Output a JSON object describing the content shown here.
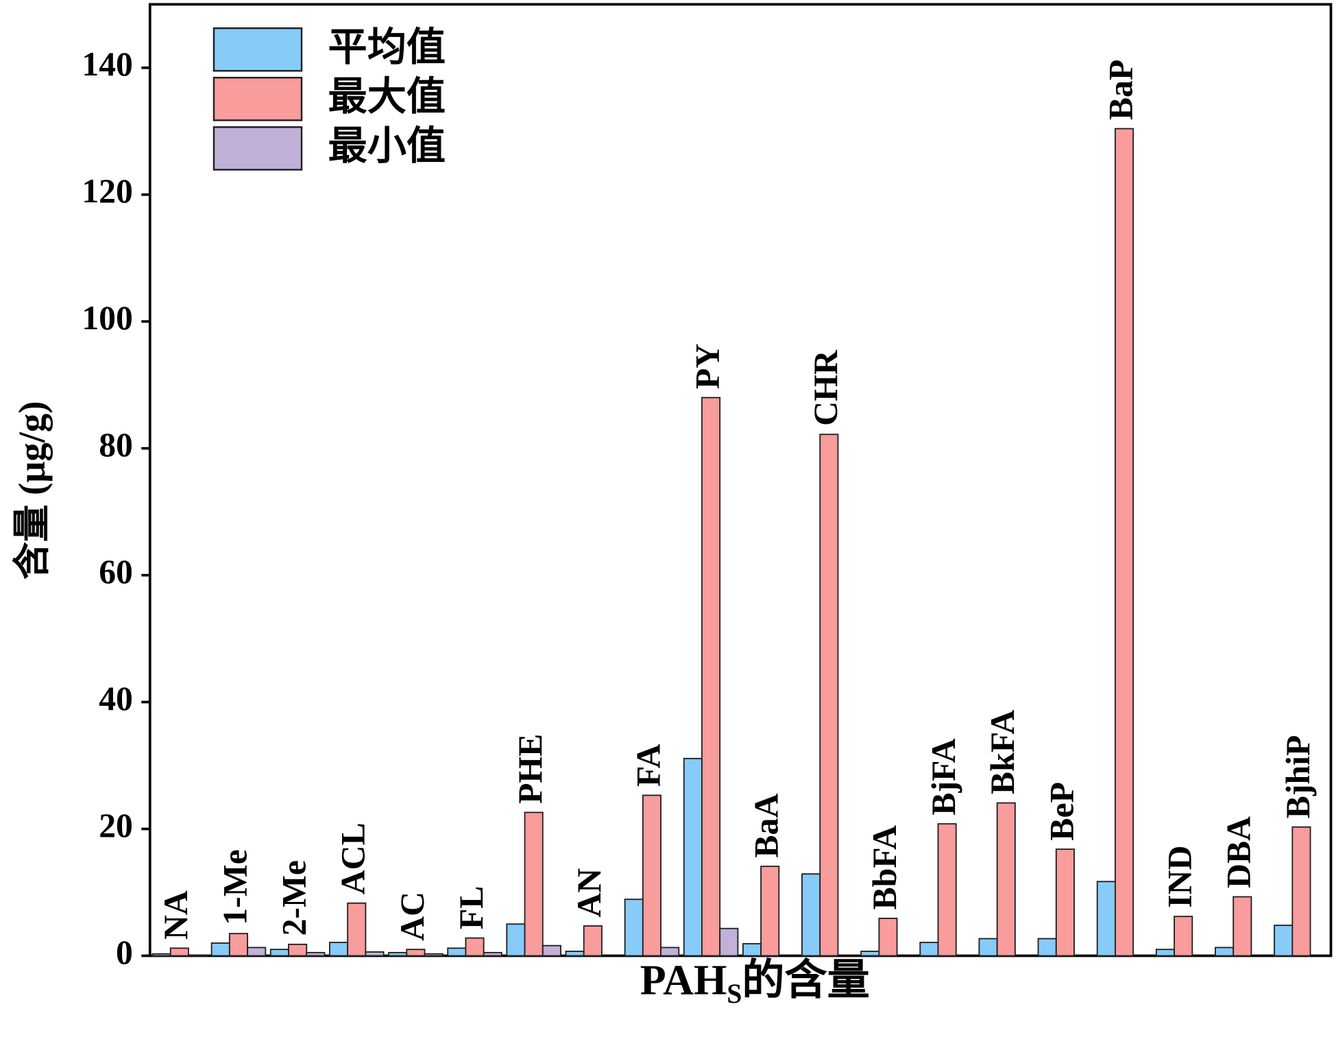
{
  "chart_data": {
    "type": "bar",
    "categories": [
      "NA",
      "1-Me",
      "2-Me",
      "ACL",
      "AC",
      "FL",
      "PHE",
      "AN",
      "FA",
      "PY",
      "BaA",
      "CHR",
      "BbFA",
      "BjFA",
      "BkFA",
      "BeP",
      "BaP",
      "IND",
      "DBA",
      "BjhiP"
    ],
    "series": [
      {
        "name": "平均值",
        "color": "#87cbf8",
        "values": [
          0.3,
          2.0,
          1.0,
          2.1,
          0.5,
          1.2,
          5.0,
          0.7,
          8.9,
          31.1,
          1.9,
          12.9,
          0.7,
          2.1,
          2.7,
          2.7,
          11.7,
          1.0,
          1.3,
          4.8
        ]
      },
      {
        "name": "最大值",
        "color": "#f89c9c",
        "values": [
          1.2,
          3.5,
          1.8,
          8.3,
          1.0,
          2.8,
          22.6,
          4.7,
          25.3,
          88.0,
          14.1,
          82.2,
          5.9,
          20.8,
          24.1,
          16.8,
          130.4,
          6.2,
          9.3,
          20.3
        ]
      },
      {
        "name": "最小值",
        "color": "#c1b1d9",
        "values": [
          0.1,
          1.3,
          0.5,
          0.6,
          0.3,
          0.5,
          1.6,
          0,
          1.3,
          4.3,
          0,
          0,
          0,
          0,
          0,
          0,
          0,
          0,
          0,
          0
        ]
      }
    ],
    "x_label": {
      "main": "PAH",
      "sub": "S",
      "rest": "的含量"
    },
    "y_label": "含量 (μg/g)",
    "ylim": [
      0,
      150
    ],
    "yticks": [
      0,
      20,
      40,
      60,
      80,
      100,
      120,
      140
    ],
    "legend": "top-left",
    "grid": false
  }
}
